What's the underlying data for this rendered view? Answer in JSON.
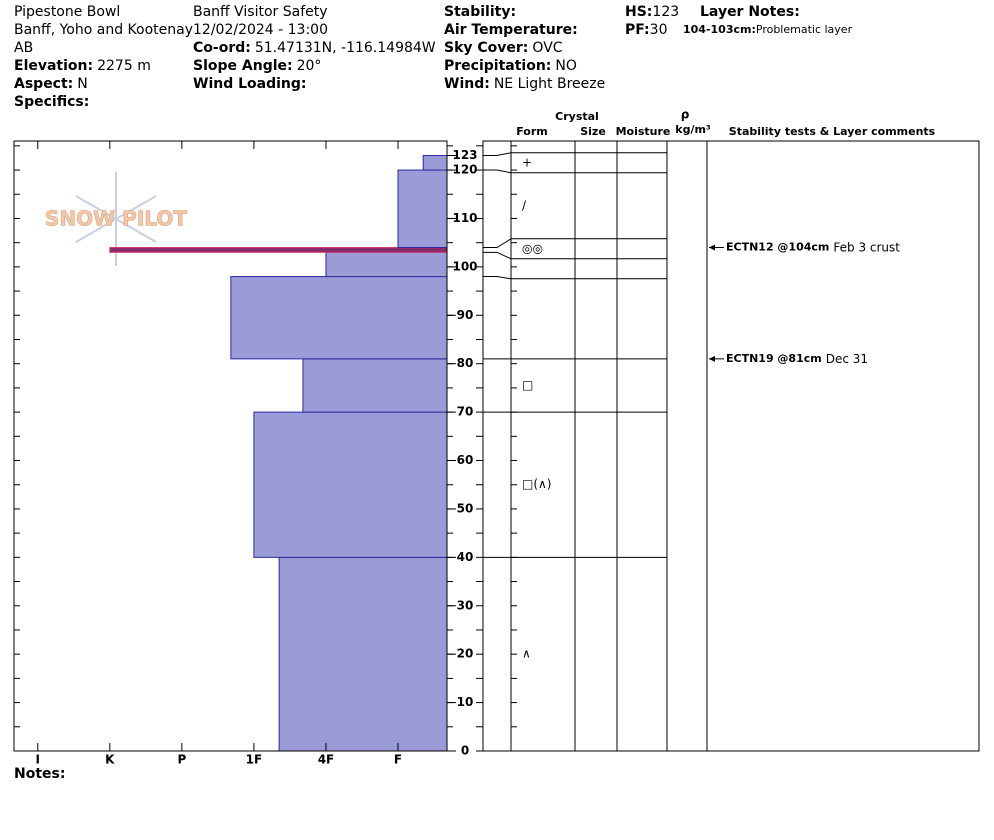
{
  "header": {
    "columns": [
      [
        {
          "text": "Pipestone Bowl"
        },
        {
          "text": "Banff, Yoho and Kootenay"
        },
        {
          "text": "AB"
        },
        {
          "label": "Elevation:",
          "value": "2275 m"
        },
        {
          "label": "Aspect:",
          "value": "N"
        },
        {
          "label": "Specifics:"
        }
      ],
      [
        {
          "text": "Banff  Visitor Safety"
        },
        {
          "text": "12/02/2024 - 13:00"
        },
        {
          "label": "Co-ord:",
          "value": "51.47131N, -116.14984W"
        },
        {
          "label": "Slope Angle:",
          "value": "20°"
        },
        {
          "label": "Wind Loading:"
        }
      ],
      [
        {
          "label": "Stability:"
        },
        {
          "label": "Air Temperature:"
        },
        {
          "label": "Sky Cover:",
          "value": "OVC"
        },
        {
          "label": "Precipitation:",
          "value": "NO"
        },
        {
          "label": "Wind:",
          "value": "NE Light Breeze"
        }
      ],
      [
        {
          "label": "HS:",
          "value": "123"
        },
        {
          "label": "PF:",
          "value": "30"
        }
      ]
    ],
    "layer_notes": {
      "title": "Layer Notes:",
      "items": [
        {
          "label": "104-103cm:",
          "value": "Problematic layer"
        }
      ]
    }
  },
  "logo": "SNOW PILOT",
  "table_headers": {
    "crystal": "Crystal",
    "form": "Form",
    "size": "Size",
    "moisture": "Moisture",
    "rho": "ρ",
    "density_unit": "kg/m³",
    "comments": "Stability tests & Layer comments"
  },
  "chart_data": {
    "type": "snow-profile",
    "xlim": [
      6.33,
      0.32
    ],
    "xticks": [
      {
        "value": 6,
        "label": "I"
      },
      {
        "value": 5,
        "label": "K"
      },
      {
        "value": 4,
        "label": "P"
      },
      {
        "value": 3,
        "label": "1F"
      },
      {
        "value": 2,
        "label": "4F"
      },
      {
        "value": 1,
        "label": "F"
      }
    ],
    "ylim": [
      0,
      126
    ],
    "yticks": [
      0,
      10,
      20,
      30,
      40,
      50,
      60,
      70,
      80,
      90,
      100,
      110,
      120,
      123
    ],
    "layers": [
      {
        "bottom": 0,
        "top": 40,
        "hardness": 2.65,
        "color": "#9b9bd7",
        "form": "∧"
      },
      {
        "bottom": 40,
        "top": 70,
        "hardness": 3,
        "color": "#9b9bd7",
        "form": "□(∧)"
      },
      {
        "bottom": 70,
        "top": 81,
        "hardness": 2.32,
        "color": "#9b9bd7",
        "form": "□"
      },
      {
        "bottom": 81,
        "top": 98,
        "hardness": 3.32,
        "color": "#9b9bd7"
      },
      {
        "bottom": 98,
        "top": 103,
        "hardness": 2,
        "color": "#9b9bd7"
      },
      {
        "bottom": 103,
        "top": 104,
        "hardness": 5,
        "color": "#8a2a6a",
        "form": "◎◎"
      },
      {
        "bottom": 104,
        "top": 120,
        "hardness": 1,
        "color": "#9b9bd7",
        "form": "/"
      },
      {
        "bottom": 120,
        "top": 123,
        "hardness": 0.65,
        "color": "#9b9bd7",
        "form": "+"
      }
    ],
    "tests": [
      {
        "height": 104,
        "code": "ECTN12 @104cm",
        "comment": "Feb 3 crust"
      },
      {
        "height": 81,
        "code": "ECTN19 @81cm",
        "comment": "Dec 31"
      }
    ]
  },
  "notes_label": "Notes:"
}
